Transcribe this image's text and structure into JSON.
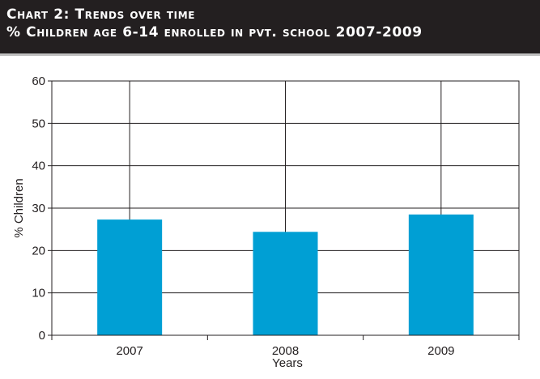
{
  "header": {
    "line1": "Chart 2: Trends over time",
    "line2": "% Children age 6-14 enrolled in pvt. school 2007-2009"
  },
  "colors": {
    "header_bg": "#231f20",
    "bar": "#009fd4",
    "axis": "#231f20"
  },
  "chart_data": {
    "type": "bar",
    "title": "",
    "categories": [
      "2007",
      "2008",
      "2009"
    ],
    "values": [
      27.3,
      24.4,
      28.5
    ],
    "xlabel": "Years",
    "ylabel": "% Children",
    "ylim": [
      0,
      60
    ],
    "yticks": [
      0,
      10,
      20,
      30,
      40,
      50,
      60
    ],
    "grid": true
  }
}
